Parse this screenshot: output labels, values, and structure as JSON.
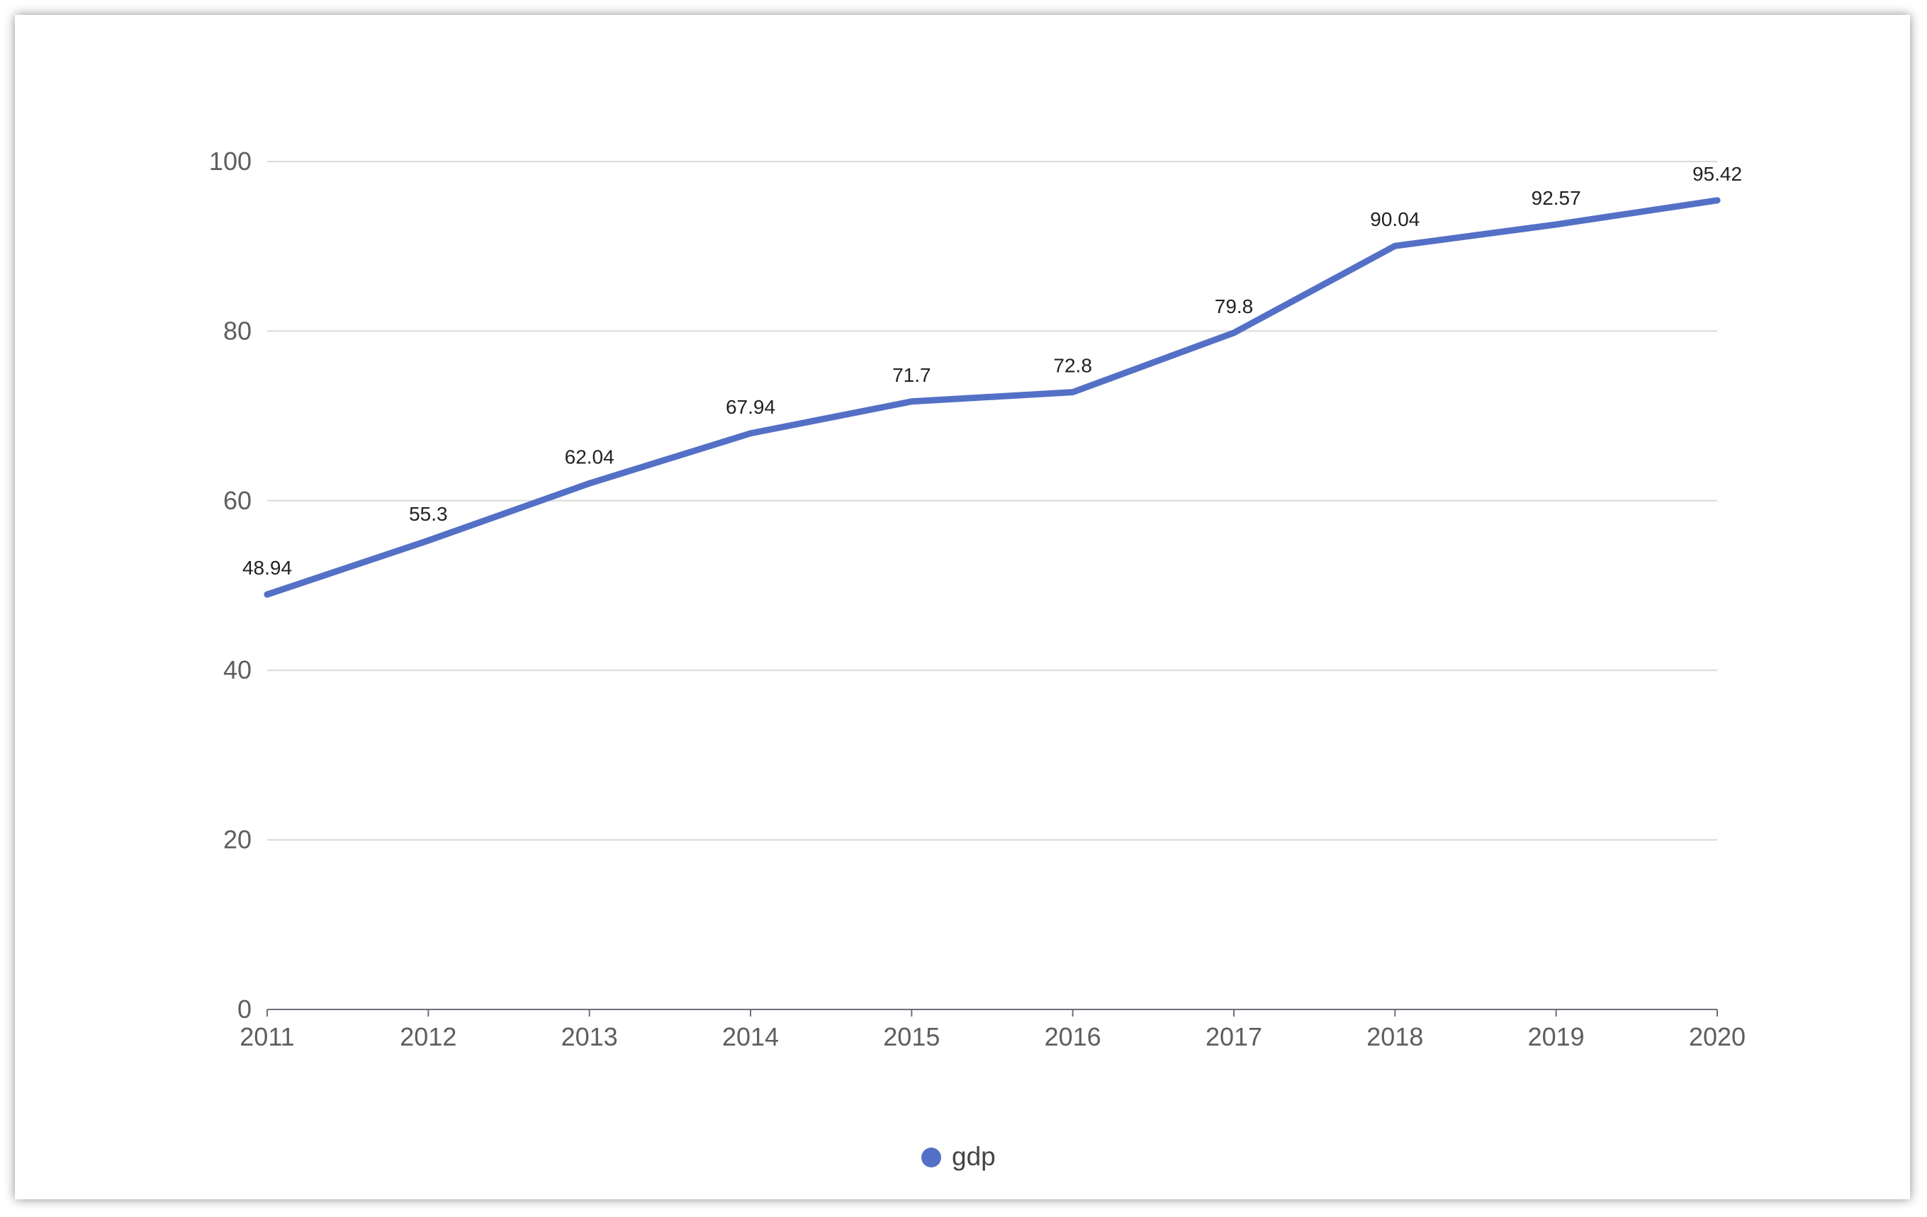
{
  "chart_data": {
    "type": "line",
    "title": "",
    "xlabel": "",
    "ylabel": "",
    "categories": [
      "2011",
      "2012",
      "2013",
      "2014",
      "2015",
      "2016",
      "2017",
      "2018",
      "2019",
      "2020"
    ],
    "series": [
      {
        "name": "gdp",
        "values": [
          48.94,
          55.3,
          62.04,
          67.94,
          71.7,
          72.8,
          79.8,
          90.04,
          92.57,
          95.42
        ]
      }
    ],
    "y_ticks": [
      "0",
      "20",
      "40",
      "60",
      "80",
      "100"
    ],
    "ylim": [
      0,
      100
    ],
    "grid": true,
    "legend_position": "bottom-center",
    "colors": {
      "series": "#5470c6",
      "grid": "#d9d9d9",
      "axis": "#6e7079"
    }
  }
}
